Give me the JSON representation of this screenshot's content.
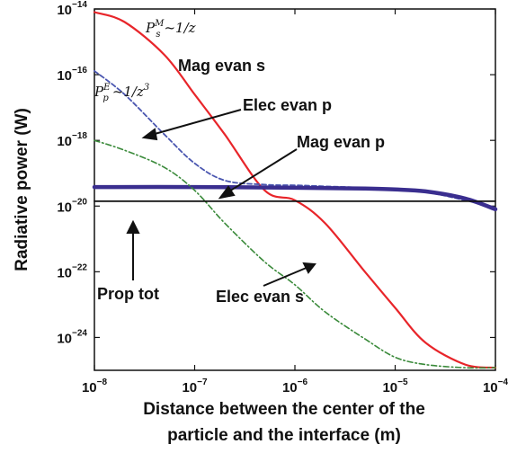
{
  "chart_data": {
    "type": "line",
    "xlabel": [
      "Distance between the center of the",
      "particle and the interface (m)"
    ],
    "ylabel": "Radiative power (W)",
    "x_scale": "log",
    "y_scale": "log",
    "xlim": [
      1e-08,
      0.0001
    ],
    "ylim": [
      1e-25,
      1e-14
    ],
    "x_ticks": [
      {
        "value": 1e-08,
        "base": "10",
        "exp": "−8"
      },
      {
        "value": 1e-07,
        "base": "10",
        "exp": "−7"
      },
      {
        "value": 1e-06,
        "base": "10",
        "exp": "−6"
      },
      {
        "value": 1e-05,
        "base": "10",
        "exp": "−5"
      },
      {
        "value": 0.0001,
        "base": "10",
        "exp": "−4"
      }
    ],
    "y_ticks": [
      {
        "value": 1e-24,
        "base": "10",
        "exp": "−24"
      },
      {
        "value": 1e-22,
        "base": "10",
        "exp": "−22"
      },
      {
        "value": 1e-20,
        "base": "10",
        "exp": "−20"
      },
      {
        "value": 1e-18,
        "base": "10",
        "exp": "−18"
      },
      {
        "value": 1e-16,
        "base": "10",
        "exp": "−16"
      },
      {
        "value": 1e-14,
        "base": "10",
        "exp": "−14"
      }
    ],
    "grid": false,
    "series": [
      {
        "name": "Mag evan s",
        "color": "#e8252a",
        "style": "solid",
        "x": [
          1e-08,
          2e-08,
          5e-08,
          1e-07,
          2e-07,
          5e-07,
          1e-06,
          2e-06,
          5e-06,
          1e-05,
          2e-05,
          5e-05,
          0.0001
        ],
        "y": [
          8e-15,
          4e-15,
          4e-16,
          2.5e-17,
          1.5e-18,
          3e-20,
          1.5e-20,
          3e-21,
          1e-22,
          8e-24,
          7e-25,
          1.5e-25,
          1.2e-25
        ]
      },
      {
        "name": "Elec evan p",
        "color": "#4a56b0",
        "style": "dashed",
        "x": [
          1e-08,
          2e-08,
          5e-08,
          1e-07,
          2e-07,
          5e-07,
          1e-06,
          2e-06,
          5e-06,
          1e-05,
          2e-05,
          5e-05,
          0.0001
        ],
        "y": [
          1.3e-16,
          2.5e-17,
          1.5e-18,
          2e-19,
          6e-20,
          4.5e-20,
          4.3e-20,
          4e-20,
          3.6e-20,
          3.3e-20,
          2.7e-20,
          1.5e-20,
          9e-21
        ]
      },
      {
        "name": "Mag evan p",
        "color": "#3a2e8f",
        "style": "thick",
        "x": [
          1e-08,
          1e-07,
          1e-06,
          5e-06,
          1e-05,
          2e-05,
          5e-05,
          0.0001
        ],
        "y": [
          3.8e-20,
          3.8e-20,
          3.6e-20,
          3.4e-20,
          3.2e-20,
          2.8e-20,
          1.7e-20,
          8e-21
        ]
      },
      {
        "name": "Elec evan s",
        "color": "#3a8a3a",
        "style": "dashdot",
        "x": [
          1e-08,
          2e-08,
          5e-08,
          1e-07,
          2e-07,
          5e-07,
          1e-06,
          2e-06,
          5e-06,
          1e-05,
          2e-05,
          5e-05,
          0.0001
        ],
        "y": [
          1e-18,
          5e-19,
          1.5e-19,
          3e-20,
          3e-21,
          2e-22,
          4e-23,
          6e-24,
          9e-25,
          2.5e-25,
          1.5e-25,
          1.2e-25,
          1.2e-25
        ]
      },
      {
        "name": "Prop tot",
        "color": "#111111",
        "style": "solid",
        "x": [
          1e-08,
          0.0001
        ],
        "y": [
          1.4e-20,
          1.4e-20
        ]
      }
    ],
    "annotations": {
      "formula_s": {
        "P": "P",
        "sub": "s",
        "sup": "M",
        "rest": "~1/z"
      },
      "formula_p": {
        "P": "P",
        "sub": "p",
        "sup": "E",
        "rest": "~1/z",
        "pow": "3"
      },
      "mag_evan_s": "Mag evan s",
      "elec_evan_p": "Elec evan p",
      "mag_evan_p": "Mag evan p",
      "prop_tot": "Prop tot",
      "elec_evan_s": "Elec evan s"
    }
  }
}
